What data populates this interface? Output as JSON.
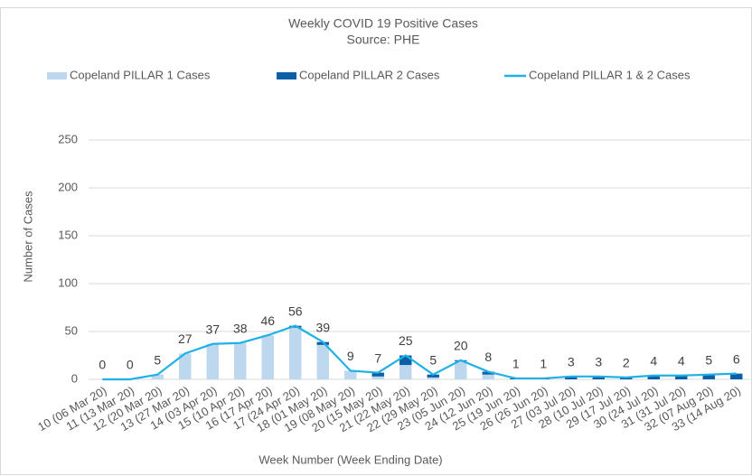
{
  "chart_data": {
    "type": "bar",
    "title": "Weekly COVID 19 Positive Cases",
    "subtitle": "Source: PHE",
    "x_label": "Week Number (Week Ending Date)",
    "y_label": "Number of Cases",
    "categories": [
      "10 (06 Mar 20)",
      "11 (13 Mar 20)",
      "12 (20 Mar 20)",
      "13 (27 Mar 20)",
      "14 (03 Apr 20)",
      "15 (10 Apr 20)",
      "16 (17 Apr 20)",
      "17 (24 Apr 20)",
      "18 (01 May 20)",
      "19 (08 May 20)",
      "20 (15 May 20)",
      "21 (22 May 20)",
      "22 (29 May 20)",
      "23 (05 Jun 20)",
      "24 (12 Jun 20)",
      "25 (19 Jun 20)",
      "26 (26 Jun 20)",
      "27 (03 Jul 20)",
      "28 (10 Jul 20)",
      "29 (17 Jul 20)",
      "30 (24 Jul 20)",
      "31 (31 Jul 20)",
      "32 (07 Aug 20)",
      "33 (14 Aug 20)"
    ],
    "series": [
      {
        "name": "Copeland PILLAR 1 Cases",
        "type": "bar",
        "color": "#bdd7ee",
        "values": [
          0,
          0,
          5,
          27,
          37,
          38,
          46,
          54,
          36,
          9,
          3,
          15,
          2,
          19,
          5,
          0,
          0,
          0,
          0,
          0,
          0,
          0,
          0,
          0
        ]
      },
      {
        "name": "Copeland PILLAR 2 Cases",
        "type": "bar",
        "color": "#0b5fa5",
        "values": [
          0,
          0,
          0,
          0,
          0,
          0,
          0,
          2,
          3,
          0,
          4,
          10,
          3,
          1,
          3,
          1,
          1,
          3,
          3,
          2,
          4,
          4,
          5,
          6
        ]
      },
      {
        "name": "Copeland PILLAR 1 & 2 Cases",
        "type": "line",
        "color": "#1fb1e6",
        "values": [
          0,
          0,
          5,
          27,
          37,
          38,
          46,
          56,
          39,
          9,
          7,
          25,
          5,
          20,
          8,
          1,
          1,
          3,
          3,
          2,
          4,
          4,
          5,
          6
        ]
      }
    ],
    "ylim": [
      0,
      250
    ],
    "yticks": [
      0,
      50,
      100,
      150,
      200,
      250
    ],
    "grid": true,
    "stacked": true,
    "legend": "top"
  }
}
